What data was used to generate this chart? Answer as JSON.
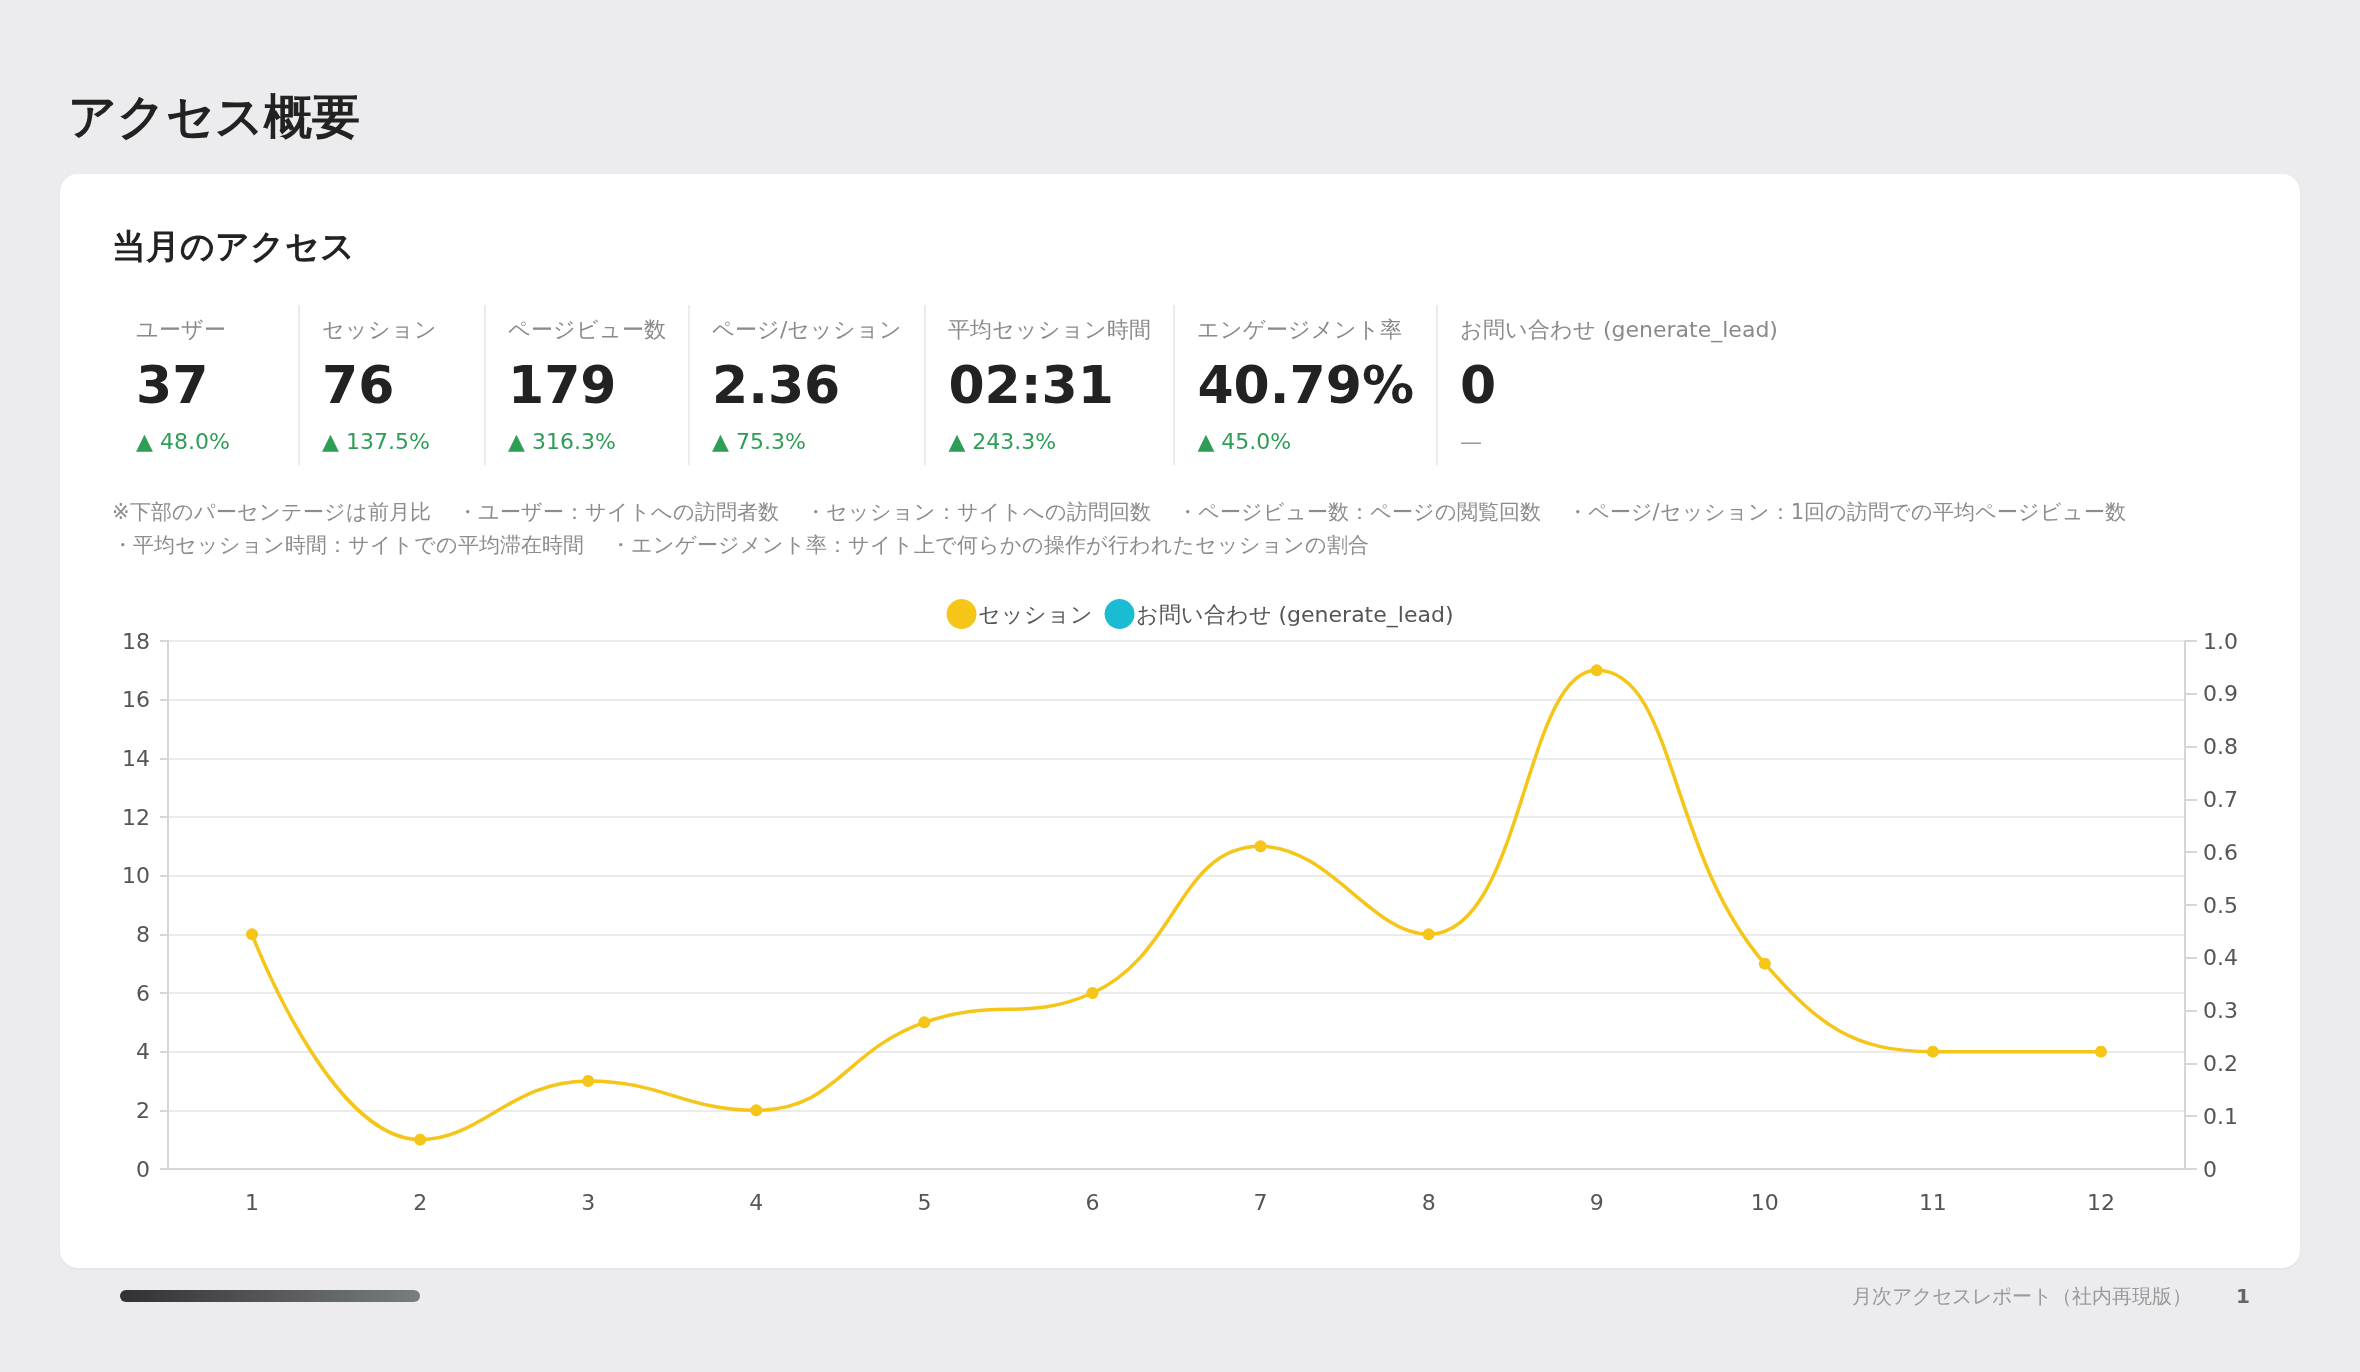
{
  "chart_data": [
    {
      "type": "other",
      "title": "アクセス概要",
      "subtitle": "当月のアクセス",
      "categories": [
        "ユーザー",
        "セッション",
        "ページビュー数",
        "ページ/セッション",
        "平均セッション時間",
        "エンゲージメント率",
        "お問い合わせ (generate_lead)"
      ],
      "colors": [
        "#2e9e57",
        "#2e9e57",
        "#2e9e57",
        "#2e9e57",
        "#2e9e57",
        "#2e9e57",
        "#9a9a9a"
      ],
      "annotations": [
        "37",
        "76",
        "179",
        "2.36",
        "02:31",
        "40.79%",
        "0",
        "▲ 48.0%",
        "▲ 137.5%",
        "▲ 316.3%",
        "▲ 75.3%",
        "▲ 243.3%",
        "▲ 45.0%",
        "—",
        "※下部のパーセンテージは前月比",
        "・ユーザー：サイトへの訪問者数",
        "・セッション：サイトへの訪問回数",
        "・ページビュー数：ページの閲覧回数",
        "・ページ/セッション：1回の訪問での平均ページビュー数",
        "・平均セッション時間：サイトでの平均滞在時間",
        "・エンゲージメント率：サイト上で何らかの操作が行われたセッションの割合"
      ]
    },
    {
      "type": "line",
      "categories": [
        "1",
        "2",
        "3",
        "4",
        "5",
        "6",
        "7",
        "8",
        "9",
        "10",
        "11",
        "12"
      ],
      "series": [
        {
          "name": "セッション",
          "color": "#f5c518",
          "values": [
            8,
            1,
            3,
            2,
            5,
            6,
            11,
            8,
            17,
            7,
            4,
            4
          ]
        },
        {
          "name": "お問い合わせ (generate_lead)",
          "color": "#19bcd1",
          "axis": "y2",
          "values": [
            null,
            null,
            null,
            null,
            null,
            null,
            null,
            null,
            null,
            null,
            null,
            null
          ]
        }
      ],
      "ylim": [
        0,
        18
      ],
      "yticks": [
        0,
        2,
        4,
        6,
        8,
        10,
        12,
        14,
        16,
        18
      ],
      "y2lim": [
        0,
        1
      ],
      "y2ticks": [
        0,
        0.1,
        0.2,
        0.3,
        0.4,
        0.5,
        0.6,
        0.7,
        0.8,
        0.9,
        {
          "value": 1,
          "label": "1.0"
        }
      ],
      "grid": "y",
      "legend": "top",
      "marker": "circle",
      "line_style": "solid",
      "annotations": [
        "月次アクセスレポート（社内再現版）",
        "1"
      ]
    }
  ]
}
